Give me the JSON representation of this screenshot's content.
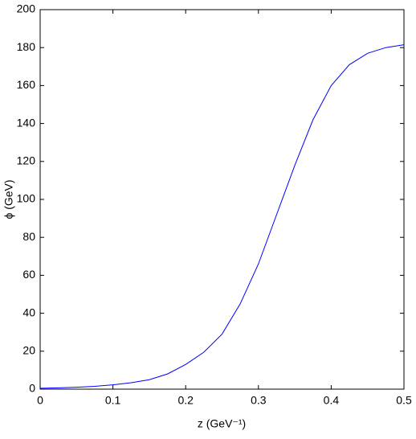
{
  "chart_data": {
    "type": "line",
    "xlabel": "z (GeV⁻¹)",
    "ylabel": "ϕ (GeV)",
    "x": [
      0,
      0.025,
      0.05,
      0.075,
      0.1,
      0.125,
      0.15,
      0.175,
      0.2,
      0.225,
      0.25,
      0.275,
      0.3,
      0.325,
      0.35,
      0.375,
      0.4,
      0.425,
      0.45,
      0.475,
      0.5
    ],
    "series": [
      {
        "color": "#0000ff",
        "values": [
          0.5,
          0.7,
          1.0,
          1.5,
          2.3,
          3.4,
          5,
          8,
          13,
          19.5,
          29,
          45,
          66,
          92,
          118,
          142,
          160,
          171,
          177,
          180,
          181.5
        ]
      }
    ],
    "xlim": [
      0,
      0.5
    ],
    "ylim": [
      0,
      200
    ],
    "xticks": [
      0,
      0.1,
      0.2,
      0.3,
      0.4,
      0.5
    ],
    "yticks": [
      0,
      20,
      40,
      60,
      80,
      100,
      120,
      140,
      160,
      180,
      200
    ],
    "grid": false
  }
}
